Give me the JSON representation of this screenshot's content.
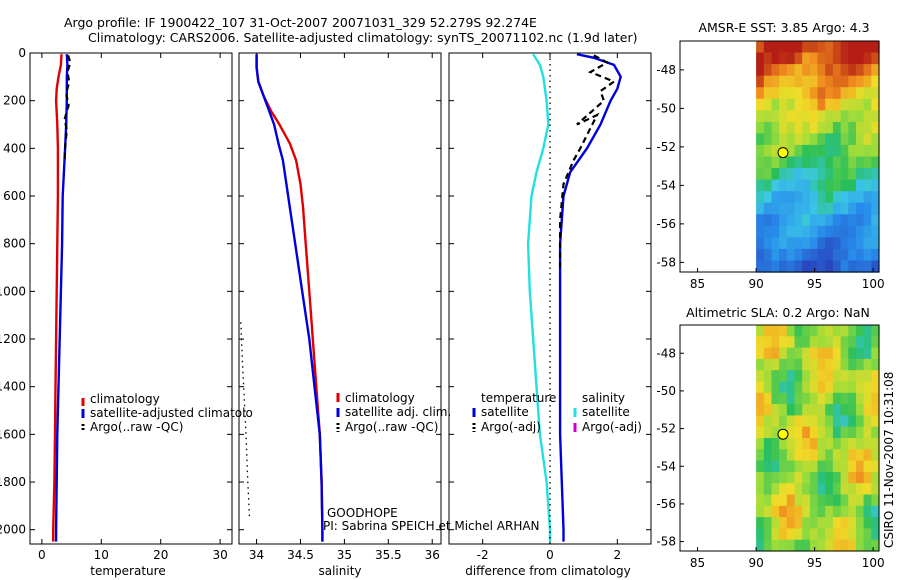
{
  "header": {
    "line1": "Argo profile: IF 1900422_107 31-Oct-2007 20071031_329 52.279S 92.274E",
    "line2": "Climatology: CARS2006. Satellite-adjusted climatology: synTS_20071102.nc (1.9d later)"
  },
  "colors": {
    "climatology": "#e00000",
    "satellite": "#0000dd",
    "argo": "#000000",
    "sat_salinity": "#22e0e0",
    "argo_adj_sal": "#cc00cc"
  },
  "chart_data": [
    {
      "id": "temperature",
      "type": "line",
      "xlabel": "temperature",
      "xlim": [
        -2,
        32
      ],
      "xticks": [
        "0",
        "10",
        "20",
        "30"
      ],
      "xtick_values": [
        0,
        10,
        20,
        30
      ],
      "ylim": [
        2060,
        0
      ],
      "yticks": [
        "0",
        "200",
        "400",
        "600",
        "800",
        "1000",
        "1200",
        "1400",
        "1600",
        "1800",
        "2000"
      ],
      "ytick_values": [
        0,
        200,
        400,
        600,
        800,
        1000,
        1200,
        1400,
        1600,
        1800,
        2000
      ],
      "series": [
        {
          "name": "climatology",
          "style": "solid",
          "color": "#e00000",
          "points": [
            [
              3.3,
              5
            ],
            [
              3.2,
              50
            ],
            [
              2.8,
              100
            ],
            [
              2.5,
              150
            ],
            [
              2.4,
              200
            ],
            [
              2.5,
              250
            ],
            [
              2.6,
              300
            ],
            [
              2.7,
              400
            ],
            [
              2.7,
              600
            ],
            [
              2.6,
              800
            ],
            [
              2.5,
              1000
            ],
            [
              2.4,
              1200
            ],
            [
              2.3,
              1400
            ],
            [
              2.2,
              1600
            ],
            [
              2.1,
              1800
            ],
            [
              1.9,
              2000
            ],
            [
              1.9,
              2050
            ]
          ]
        },
        {
          "name": "satellite-adjusted climatology",
          "style": "solid",
          "color": "#0000dd",
          "points": [
            [
              4.2,
              5
            ],
            [
              4.3,
              50
            ],
            [
              4.2,
              100
            ],
            [
              4.2,
              200
            ],
            [
              4.1,
              300
            ],
            [
              3.9,
              400
            ],
            [
              3.7,
              500
            ],
            [
              3.5,
              600
            ],
            [
              3.4,
              800
            ],
            [
              3.2,
              1000
            ],
            [
              3.0,
              1200
            ],
            [
              2.8,
              1400
            ],
            [
              2.6,
              1600
            ],
            [
              2.5,
              1800
            ],
            [
              2.4,
              2000
            ],
            [
              2.4,
              2050
            ]
          ]
        },
        {
          "name": "Argo(..raw -QC)",
          "style": "dashed",
          "color": "#000000",
          "points": [
            [
              4.4,
              10
            ],
            [
              4.8,
              40
            ],
            [
              4.3,
              80
            ],
            [
              4.6,
              120
            ],
            [
              4.1,
              170
            ],
            [
              4.5,
              220
            ],
            [
              3.8,
              280
            ],
            [
              4.2,
              320
            ],
            [
              3.9,
              400
            ],
            [
              3.8,
              450
            ]
          ]
        }
      ],
      "legend": [
        "climatology",
        "satellite-adjusted climatolo",
        "Argo(..raw -QC)"
      ]
    },
    {
      "id": "salinity",
      "type": "line",
      "xlabel": "salinity",
      "xlim": [
        33.8,
        36.1
      ],
      "xticks": [
        "34",
        "34.5",
        "35",
        "35.5",
        "36"
      ],
      "xtick_values": [
        34,
        34.5,
        35,
        35.5,
        36
      ],
      "ylim": [
        2060,
        0
      ],
      "series": [
        {
          "name": "climatology",
          "style": "solid",
          "color": "#e00000",
          "points": [
            [
              34.0,
              5
            ],
            [
              34.0,
              60
            ],
            [
              34.02,
              120
            ],
            [
              34.08,
              180
            ],
            [
              34.16,
              240
            ],
            [
              34.26,
              300
            ],
            [
              34.38,
              380
            ],
            [
              34.45,
              450
            ],
            [
              34.5,
              550
            ],
            [
              34.53,
              650
            ],
            [
              34.56,
              800
            ],
            [
              34.6,
              1000
            ],
            [
              34.64,
              1200
            ],
            [
              34.68,
              1400
            ],
            [
              34.72,
              1600
            ],
            [
              34.74,
              1800
            ],
            [
              34.75,
              2000
            ],
            [
              34.75,
              2050
            ]
          ]
        },
        {
          "name": "satellite adj. clim.",
          "style": "solid",
          "color": "#0000dd",
          "points": [
            [
              34.0,
              5
            ],
            [
              34.0,
              60
            ],
            [
              34.02,
              120
            ],
            [
              34.08,
              180
            ],
            [
              34.14,
              240
            ],
            [
              34.2,
              300
            ],
            [
              34.25,
              380
            ],
            [
              34.3,
              450
            ],
            [
              34.34,
              550
            ],
            [
              34.38,
              650
            ],
            [
              34.44,
              800
            ],
            [
              34.52,
              1000
            ],
            [
              34.6,
              1200
            ],
            [
              34.66,
              1400
            ],
            [
              34.72,
              1600
            ],
            [
              34.74,
              1800
            ],
            [
              34.75,
              2000
            ],
            [
              34.75,
              2050
            ]
          ]
        },
        {
          "name": "Argo(..raw -QC)",
          "style": "dotted",
          "color": "#000000",
          "points": [
            [
              33.82,
              1130
            ],
            [
              33.84,
              1300
            ],
            [
              33.86,
              1450
            ],
            [
              33.88,
              1600
            ],
            [
              33.9,
              1800
            ],
            [
              33.92,
              1950
            ]
          ]
        }
      ],
      "legend": [
        "climatology",
        "satellite adj. clim.",
        "Argo(..raw -QC)"
      ],
      "annotation1": "GOODHOPE",
      "annotation2": "PI: Sabrina SPEICH et Michel ARHAN"
    },
    {
      "id": "difference",
      "type": "line",
      "xlabel": "difference from climatology",
      "xlim": [
        -3,
        3
      ],
      "xticks": [
        "-2",
        "0",
        "2"
      ],
      "xtick_values": [
        -2,
        0,
        2
      ],
      "ylim": [
        2060,
        0
      ],
      "series": [
        {
          "name": "salinity satellite",
          "style": "solid",
          "color": "#22e0e0",
          "points": [
            [
              -0.5,
              5
            ],
            [
              -0.3,
              50
            ],
            [
              -0.2,
              100
            ],
            [
              -0.1,
              200
            ],
            [
              -0.05,
              300
            ],
            [
              -0.2,
              400
            ],
            [
              -0.4,
              500
            ],
            [
              -0.55,
              600
            ],
            [
              -0.65,
              800
            ],
            [
              -0.6,
              1000
            ],
            [
              -0.5,
              1200
            ],
            [
              -0.4,
              1400
            ],
            [
              -0.3,
              1600
            ],
            [
              -0.1,
              1800
            ],
            [
              0,
              2000
            ],
            [
              0,
              2050
            ]
          ]
        },
        {
          "name": "temperature satellite",
          "style": "solid",
          "color": "#0000dd",
          "points": [
            [
              0.8,
              5
            ],
            [
              1.3,
              20
            ],
            [
              1.9,
              50
            ],
            [
              2.1,
              100
            ],
            [
              2.0,
              150
            ],
            [
              1.8,
              200
            ],
            [
              1.5,
              300
            ],
            [
              1.1,
              400
            ],
            [
              0.6,
              500
            ],
            [
              0.4,
              600
            ],
            [
              0.3,
              800
            ],
            [
              0.3,
              1000
            ],
            [
              0.3,
              1200
            ],
            [
              0.3,
              1400
            ],
            [
              0.3,
              1600
            ],
            [
              0.35,
              1800
            ],
            [
              0.4,
              2000
            ],
            [
              0.4,
              2050
            ]
          ]
        },
        {
          "name": "temperature Argo(-adj)",
          "style": "dashed",
          "color": "#000000",
          "points": [
            [
              1.3,
              10
            ],
            [
              1.7,
              40
            ],
            [
              1.2,
              80
            ],
            [
              1.9,
              120
            ],
            [
              1.5,
              160
            ],
            [
              1.6,
              200
            ],
            [
              0.8,
              300
            ],
            [
              1.4,
              260
            ],
            [
              0.9,
              400
            ],
            [
              0.7,
              450
            ],
            [
              0.4,
              550
            ],
            [
              0.3,
              700
            ],
            [
              0.3,
              900
            ]
          ]
        },
        {
          "name": "zero",
          "style": "dotted",
          "color": "#000000",
          "points": [
            [
              0,
              0
            ],
            [
              0,
              2060
            ]
          ]
        }
      ],
      "legend_left_title": "temperature",
      "legend_right_title": "salinity",
      "legend": [
        "satellite",
        "Argo(-adj)",
        "satellite",
        "Argo(-adj)"
      ]
    },
    {
      "id": "sst-map",
      "type": "heatmap",
      "title": "AMSR-E SST: 3.85 Argo: 4.3",
      "xticks": [
        "85",
        "90",
        "95",
        "100"
      ],
      "xtick_values": [
        85,
        90,
        95,
        100
      ],
      "yticks": [
        "-48",
        "-50",
        "-52",
        "-54",
        "-56",
        "-58"
      ],
      "ytick_values": [
        -48,
        -50,
        -52,
        -54,
        -56,
        -58
      ],
      "xlim": [
        83.5,
        100.5
      ],
      "ylim": [
        -58.5,
        -46.5
      ],
      "data_x_start": 90,
      "marker": [
        92.3,
        -52.3
      ]
    },
    {
      "id": "sla-map",
      "type": "heatmap",
      "title": "Altimetric SLA: 0.2 Argo: NaN",
      "xticks": [
        "85",
        "90",
        "95",
        "100"
      ],
      "xtick_values": [
        85,
        90,
        95,
        100
      ],
      "yticks": [
        "-48",
        "-50",
        "-52",
        "-54",
        "-56",
        "-58"
      ],
      "ytick_values": [
        -48,
        -50,
        -52,
        -54,
        -56,
        -58
      ],
      "xlim": [
        83.5,
        100.5
      ],
      "ylim": [
        -58.5,
        -46.5
      ],
      "data_x_start": 90,
      "marker": [
        92.3,
        -52.3
      ]
    }
  ],
  "footer": {
    "credit": "CSIRO 11-Nov-2007 10:31:08"
  }
}
